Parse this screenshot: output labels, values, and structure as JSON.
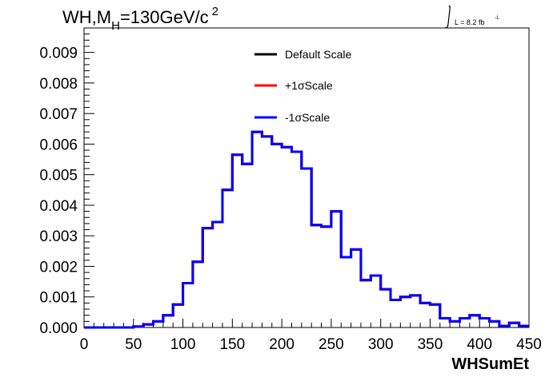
{
  "chart_data": {
    "type": "line",
    "subtype": "step-histogram",
    "title": {
      "main": "WH,M",
      "subscript": "H",
      "value": "=130GeV/c",
      "superscript": "2"
    },
    "lumi": {
      "label": "L = 8.2 fb",
      "superscript": "-1"
    },
    "xlabel": "WHSumEt",
    "ylabel": "",
    "xlim": [
      0,
      450
    ],
    "ylim": [
      0,
      0.0098
    ],
    "bin_width": 10,
    "x_ticks": [
      "0",
      "50",
      "100",
      "150",
      "200",
      "250",
      "300",
      "350",
      "400",
      "450"
    ],
    "y_ticks": [
      "0.000",
      "0.001",
      "0.002",
      "0.003",
      "0.004",
      "0.005",
      "0.006",
      "0.007",
      "0.008",
      "0.009"
    ],
    "grid": false,
    "legend_placement": "top-center",
    "series": [
      {
        "name": "Default Scale",
        "color": "#000000",
        "values": [
          0,
          0,
          0,
          0,
          0,
          3e-05,
          0.0001,
          0.0002,
          0.0004,
          0.00075,
          0.00145,
          0.00215,
          0.00325,
          0.00345,
          0.0045,
          0.00565,
          0.00535,
          0.0064,
          0.00625,
          0.006,
          0.0059,
          0.00575,
          0.0052,
          0.00335,
          0.0033,
          0.0038,
          0.0023,
          0.00255,
          0.00155,
          0.0017,
          0.00125,
          0.0009,
          0.001,
          0.00105,
          0.0008,
          0.00075,
          0.0003,
          0.0002,
          0.0003,
          0.0004,
          0.0003,
          0.0002,
          5e-05,
          0.00015,
          5e-05
        ]
      },
      {
        "name": "+1σScale",
        "color": "#ff0000",
        "values": [
          0,
          0,
          0,
          0,
          0,
          3e-05,
          0.0001,
          0.0002,
          0.0004,
          0.00075,
          0.00145,
          0.00215,
          0.00325,
          0.00345,
          0.0045,
          0.00565,
          0.00535,
          0.0064,
          0.00625,
          0.006,
          0.0059,
          0.00575,
          0.0052,
          0.00335,
          0.0033,
          0.0038,
          0.0023,
          0.00255,
          0.00155,
          0.0017,
          0.00125,
          0.0009,
          0.001,
          0.00105,
          0.0008,
          0.00075,
          0.0003,
          0.0002,
          0.0003,
          0.0004,
          0.0003,
          0.0002,
          5e-05,
          0.00015,
          5e-05
        ]
      },
      {
        "name": "-1σScale",
        "color": "#0000ff",
        "values": [
          0,
          0,
          0,
          0,
          0,
          3e-05,
          0.0001,
          0.0002,
          0.0004,
          0.00075,
          0.00145,
          0.00215,
          0.00325,
          0.00345,
          0.0045,
          0.00565,
          0.00535,
          0.0064,
          0.00625,
          0.006,
          0.0059,
          0.00575,
          0.0052,
          0.00335,
          0.0033,
          0.0038,
          0.0023,
          0.00255,
          0.00155,
          0.0017,
          0.00125,
          0.0009,
          0.001,
          0.00105,
          0.0008,
          0.00075,
          0.0003,
          0.0002,
          0.0003,
          0.0004,
          0.0003,
          0.0002,
          5e-05,
          0.00015,
          5e-05
        ]
      }
    ]
  }
}
